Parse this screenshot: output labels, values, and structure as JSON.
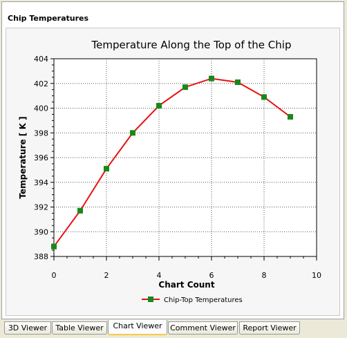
{
  "panel": {
    "title": "Chip Temperatures"
  },
  "chart_data": {
    "type": "line",
    "title": "Temperature Along the Top of the Chip",
    "xlabel": "Chart Count",
    "ylabel": "Temperature [ K ]",
    "xlim": [
      0,
      10
    ],
    "ylim": [
      388,
      404
    ],
    "xticks": [
      "0",
      "2",
      "4",
      "6",
      "8",
      "10"
    ],
    "yticks": [
      "388",
      "390",
      "392",
      "394",
      "396",
      "398",
      "400",
      "402",
      "404"
    ],
    "grid": true,
    "legend_position": "bottom",
    "x": [
      0,
      1,
      2,
      3,
      4,
      5,
      6,
      7,
      8,
      9
    ],
    "series": [
      {
        "name": "Chip-Top Temperatures",
        "values": [
          388.8,
          391.7,
          395.1,
          398.0,
          400.2,
          401.7,
          402.4,
          402.1,
          400.9,
          399.3
        ],
        "line_color": "#e81010",
        "marker_color": "#18881a"
      }
    ]
  },
  "tabs": [
    {
      "label": "3D Viewer",
      "active": false
    },
    {
      "label": "Table Viewer",
      "active": false
    },
    {
      "label": "Chart Viewer",
      "active": true
    },
    {
      "label": "Comment Viewer",
      "active": false
    },
    {
      "label": "Report Viewer",
      "active": false
    }
  ]
}
